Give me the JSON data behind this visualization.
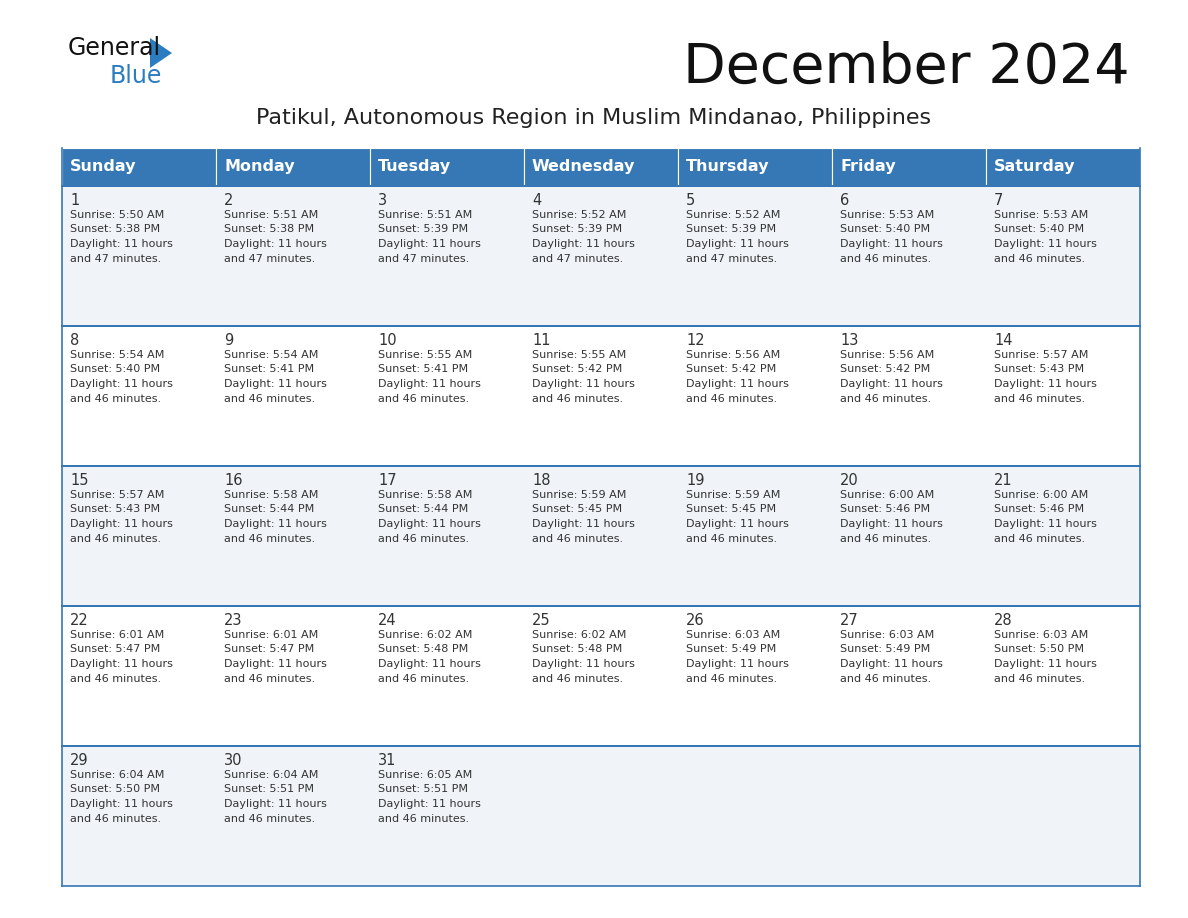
{
  "title": "December 2024",
  "subtitle": "Patikul, Autonomous Region in Muslim Mindanao, Philippines",
  "header_bg_color": "#3578b5",
  "header_text_color": "#ffffff",
  "cell_bg_odd": "#f0f4f8",
  "cell_bg_even": "#ffffff",
  "border_color": "#3578b5",
  "text_color": "#333333",
  "day_headers": [
    "Sunday",
    "Monday",
    "Tuesday",
    "Wednesday",
    "Thursday",
    "Friday",
    "Saturday"
  ],
  "weeks": [
    [
      {
        "day": 1,
        "sunrise": "5:50 AM",
        "sunset": "5:38 PM",
        "dl_hours": 11,
        "dl_min": 47
      },
      {
        "day": 2,
        "sunrise": "5:51 AM",
        "sunset": "5:38 PM",
        "dl_hours": 11,
        "dl_min": 47
      },
      {
        "day": 3,
        "sunrise": "5:51 AM",
        "sunset": "5:39 PM",
        "dl_hours": 11,
        "dl_min": 47
      },
      {
        "day": 4,
        "sunrise": "5:52 AM",
        "sunset": "5:39 PM",
        "dl_hours": 11,
        "dl_min": 47
      },
      {
        "day": 5,
        "sunrise": "5:52 AM",
        "sunset": "5:39 PM",
        "dl_hours": 11,
        "dl_min": 47
      },
      {
        "day": 6,
        "sunrise": "5:53 AM",
        "sunset": "5:40 PM",
        "dl_hours": 11,
        "dl_min": 46
      },
      {
        "day": 7,
        "sunrise": "5:53 AM",
        "sunset": "5:40 PM",
        "dl_hours": 11,
        "dl_min": 46
      }
    ],
    [
      {
        "day": 8,
        "sunrise": "5:54 AM",
        "sunset": "5:40 PM",
        "dl_hours": 11,
        "dl_min": 46
      },
      {
        "day": 9,
        "sunrise": "5:54 AM",
        "sunset": "5:41 PM",
        "dl_hours": 11,
        "dl_min": 46
      },
      {
        "day": 10,
        "sunrise": "5:55 AM",
        "sunset": "5:41 PM",
        "dl_hours": 11,
        "dl_min": 46
      },
      {
        "day": 11,
        "sunrise": "5:55 AM",
        "sunset": "5:42 PM",
        "dl_hours": 11,
        "dl_min": 46
      },
      {
        "day": 12,
        "sunrise": "5:56 AM",
        "sunset": "5:42 PM",
        "dl_hours": 11,
        "dl_min": 46
      },
      {
        "day": 13,
        "sunrise": "5:56 AM",
        "sunset": "5:42 PM",
        "dl_hours": 11,
        "dl_min": 46
      },
      {
        "day": 14,
        "sunrise": "5:57 AM",
        "sunset": "5:43 PM",
        "dl_hours": 11,
        "dl_min": 46
      }
    ],
    [
      {
        "day": 15,
        "sunrise": "5:57 AM",
        "sunset": "5:43 PM",
        "dl_hours": 11,
        "dl_min": 46
      },
      {
        "day": 16,
        "sunrise": "5:58 AM",
        "sunset": "5:44 PM",
        "dl_hours": 11,
        "dl_min": 46
      },
      {
        "day": 17,
        "sunrise": "5:58 AM",
        "sunset": "5:44 PM",
        "dl_hours": 11,
        "dl_min": 46
      },
      {
        "day": 18,
        "sunrise": "5:59 AM",
        "sunset": "5:45 PM",
        "dl_hours": 11,
        "dl_min": 46
      },
      {
        "day": 19,
        "sunrise": "5:59 AM",
        "sunset": "5:45 PM",
        "dl_hours": 11,
        "dl_min": 46
      },
      {
        "day": 20,
        "sunrise": "6:00 AM",
        "sunset": "5:46 PM",
        "dl_hours": 11,
        "dl_min": 46
      },
      {
        "day": 21,
        "sunrise": "6:00 AM",
        "sunset": "5:46 PM",
        "dl_hours": 11,
        "dl_min": 46
      }
    ],
    [
      {
        "day": 22,
        "sunrise": "6:01 AM",
        "sunset": "5:47 PM",
        "dl_hours": 11,
        "dl_min": 46
      },
      {
        "day": 23,
        "sunrise": "6:01 AM",
        "sunset": "5:47 PM",
        "dl_hours": 11,
        "dl_min": 46
      },
      {
        "day": 24,
        "sunrise": "6:02 AM",
        "sunset": "5:48 PM",
        "dl_hours": 11,
        "dl_min": 46
      },
      {
        "day": 25,
        "sunrise": "6:02 AM",
        "sunset": "5:48 PM",
        "dl_hours": 11,
        "dl_min": 46
      },
      {
        "day": 26,
        "sunrise": "6:03 AM",
        "sunset": "5:49 PM",
        "dl_hours": 11,
        "dl_min": 46
      },
      {
        "day": 27,
        "sunrise": "6:03 AM",
        "sunset": "5:49 PM",
        "dl_hours": 11,
        "dl_min": 46
      },
      {
        "day": 28,
        "sunrise": "6:03 AM",
        "sunset": "5:50 PM",
        "dl_hours": 11,
        "dl_min": 46
      }
    ],
    [
      {
        "day": 29,
        "sunrise": "6:04 AM",
        "sunset": "5:50 PM",
        "dl_hours": 11,
        "dl_min": 46
      },
      {
        "day": 30,
        "sunrise": "6:04 AM",
        "sunset": "5:51 PM",
        "dl_hours": 11,
        "dl_min": 46
      },
      {
        "day": 31,
        "sunrise": "6:05 AM",
        "sunset": "5:51 PM",
        "dl_hours": 11,
        "dl_min": 46
      },
      null,
      null,
      null,
      null
    ]
  ]
}
